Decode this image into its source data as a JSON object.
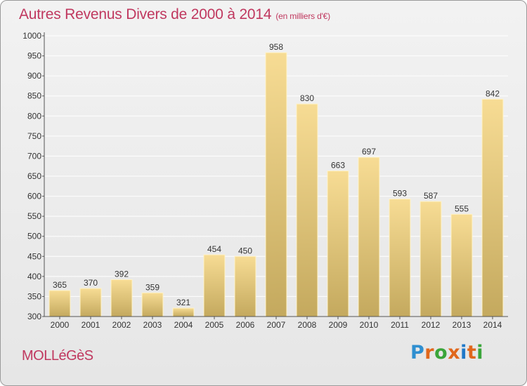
{
  "title": "Autres Revenus Divers de 2000 à 2014",
  "subtitle": "(en milliers d'€)",
  "place": "MOLLéGèS",
  "logo": {
    "text": "Proxiti",
    "colors": [
      "#2f8fd0",
      "#e0671c",
      "#3aa53a",
      "#e0671c",
      "#1f78c8",
      "#e0671c",
      "#3aa53a"
    ]
  },
  "colors": {
    "title": "#c0385f",
    "bar_top": "#f7dc94",
    "bar_bottom": "#c4a95e",
    "grid": "#ffffff",
    "axis_text": "#333333"
  },
  "chart_data": {
    "type": "bar",
    "categories": [
      "2000",
      "2001",
      "2002",
      "2003",
      "2004",
      "2005",
      "2006",
      "2007",
      "2008",
      "2009",
      "2010",
      "2011",
      "2012",
      "2013",
      "2014"
    ],
    "values": [
      365,
      370,
      392,
      359,
      321,
      454,
      450,
      958,
      830,
      663,
      697,
      593,
      587,
      555,
      842
    ],
    "ylim": [
      300,
      1000
    ],
    "yticks": [
      300,
      350,
      400,
      450,
      500,
      550,
      600,
      650,
      700,
      750,
      800,
      850,
      900,
      950,
      1000
    ],
    "grid": true,
    "data_labels": true
  }
}
